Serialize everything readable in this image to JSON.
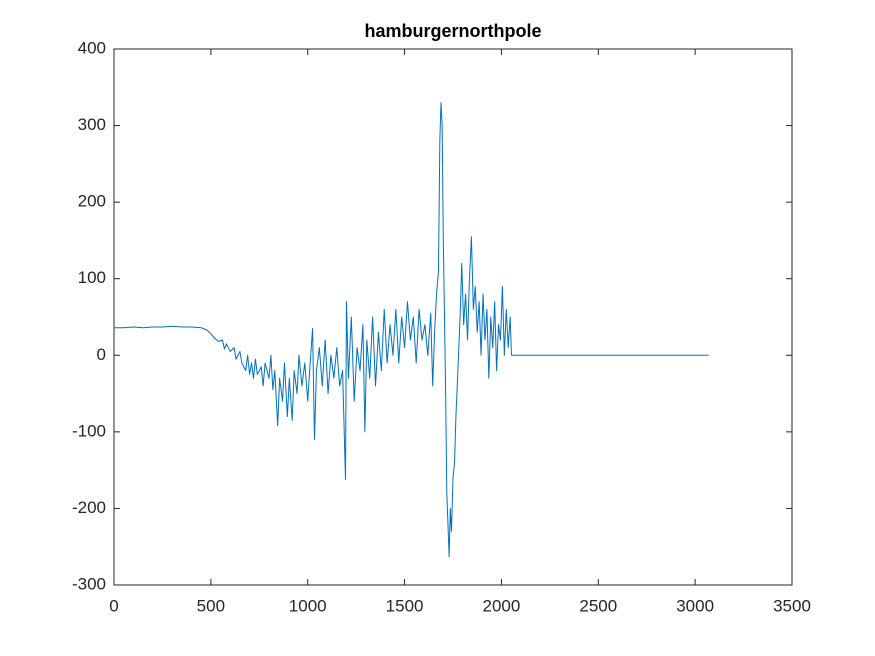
{
  "chart_data": {
    "type": "line",
    "title": "hamburgernorthpole",
    "color": "#0072bd",
    "x": [
      0,
      50,
      100,
      150,
      200,
      250,
      300,
      350,
      400,
      450,
      460,
      480,
      500,
      520,
      540,
      560,
      570,
      580,
      600,
      620,
      630,
      650,
      660,
      680,
      690,
      700,
      710,
      720,
      730,
      740,
      760,
      770,
      780,
      800,
      810,
      820,
      830,
      845,
      855,
      870,
      880,
      895,
      905,
      920,
      930,
      945,
      955,
      970,
      985,
      1000,
      1010,
      1025,
      1035,
      1045,
      1060,
      1075,
      1090,
      1105,
      1120,
      1135,
      1150,
      1165,
      1180,
      1195,
      1200,
      1210,
      1225,
      1240,
      1255,
      1270,
      1285,
      1295,
      1305,
      1320,
      1335,
      1350,
      1365,
      1380,
      1395,
      1410,
      1425,
      1440,
      1455,
      1470,
      1485,
      1500,
      1515,
      1530,
      1545,
      1560,
      1575,
      1590,
      1605,
      1620,
      1635,
      1645,
      1655,
      1665,
      1675,
      1682,
      1688,
      1694,
      1700,
      1706,
      1712,
      1718,
      1724,
      1730,
      1736,
      1742,
      1750,
      1758,
      1765,
      1772,
      1780,
      1788,
      1795,
      1805,
      1815,
      1825,
      1835,
      1845,
      1855,
      1865,
      1875,
      1885,
      1895,
      1905,
      1915,
      1925,
      1935,
      1945,
      1955,
      1965,
      1975,
      1985,
      1995,
      2005,
      2015,
      2025,
      2035,
      2045,
      2052,
      3070
    ],
    "values": [
      36,
      36,
      37,
      36,
      37,
      37,
      38,
      37,
      37,
      36,
      35,
      33,
      28,
      22,
      18,
      20,
      8,
      15,
      5,
      10,
      -5,
      5,
      -10,
      -20,
      0,
      -25,
      -10,
      -30,
      -5,
      -25,
      -15,
      -40,
      -10,
      -30,
      0,
      -45,
      -20,
      -92,
      -30,
      -60,
      -10,
      -80,
      -30,
      -85,
      -20,
      -50,
      0,
      -40,
      -10,
      -60,
      -20,
      35,
      -110,
      -20,
      10,
      -40,
      20,
      -50,
      0,
      -30,
      10,
      -40,
      -20,
      -162,
      70,
      -30,
      50,
      -60,
      10,
      -20,
      40,
      -100,
      20,
      -30,
      50,
      -40,
      30,
      -20,
      60,
      -10,
      40,
      0,
      60,
      -10,
      50,
      10,
      70,
      20,
      50,
      -10,
      60,
      20,
      40,
      0,
      55,
      -40,
      30,
      80,
      110,
      280,
      330,
      300,
      150,
      50,
      -50,
      -180,
      -220,
      -263,
      -200,
      -230,
      -160,
      -140,
      -80,
      -40,
      10,
      60,
      120,
      40,
      80,
      20,
      100,
      155,
      60,
      90,
      30,
      70,
      0,
      80,
      20,
      60,
      -30,
      50,
      10,
      70,
      -20,
      40,
      20,
      90,
      0,
      60,
      10,
      50,
      0,
      0
    ],
    "xlim": [
      0,
      3500
    ],
    "xticks": [
      0,
      500,
      1000,
      1500,
      2000,
      2500,
      3000,
      3500
    ],
    "ylim": [
      -300,
      400
    ],
    "yticks": [
      -300,
      -200,
      -100,
      0,
      100,
      200,
      300,
      400
    ]
  }
}
